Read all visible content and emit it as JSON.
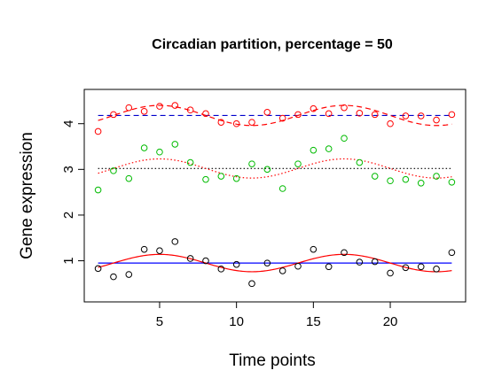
{
  "chart_data": {
    "type": "scatter",
    "title": "Circadian partition, percentage =  50",
    "xlabel": "Time points",
    "ylabel": "Gene expression",
    "xlim": [
      0.1,
      24.9
    ],
    "ylim": [
      0.1,
      4.75
    ],
    "x_ticks": [
      5,
      10,
      15,
      20
    ],
    "y_ticks": [
      1,
      2,
      3,
      4
    ],
    "grid": false,
    "legend": "none",
    "x": [
      1,
      2,
      3,
      4,
      5,
      6,
      7,
      8,
      9,
      10,
      11,
      12,
      13,
      14,
      15,
      16,
      17,
      18,
      19,
      20,
      21,
      22,
      23,
      24
    ],
    "series": [
      {
        "color": "#ff0000",
        "values": [
          3.83,
          4.2,
          4.35,
          4.27,
          4.38,
          4.4,
          4.3,
          4.22,
          4.03,
          4.0,
          4.03,
          4.25,
          4.12,
          4.2,
          4.33,
          4.22,
          4.35,
          4.23,
          4.2,
          4.0,
          4.17,
          4.17,
          4.08,
          4.2
        ],
        "mean": 4.18,
        "mean_style": "dashed",
        "mean_color": "#0000cc",
        "fit": {
          "mean": 4.18,
          "amplitude": 0.22,
          "period": 12,
          "peak": 5,
          "style": "dashed",
          "color": "#ff0000"
        }
      },
      {
        "color": "#00bb00",
        "values": [
          2.55,
          2.97,
          2.8,
          3.47,
          3.38,
          3.55,
          3.15,
          2.78,
          2.85,
          2.8,
          3.12,
          3.0,
          2.58,
          3.12,
          3.42,
          3.45,
          3.68,
          3.15,
          2.85,
          2.75,
          2.78,
          2.7,
          2.85,
          2.72
        ],
        "mean": 3.02,
        "mean_style": "dotted",
        "mean_color": "#000000",
        "fit": {
          "mean": 3.02,
          "amplitude": 0.21,
          "period": 12,
          "peak": 5,
          "style": "dotted",
          "color": "#ff0000"
        }
      },
      {
        "color": "#000000",
        "values": [
          0.83,
          0.65,
          0.7,
          1.25,
          1.22,
          1.42,
          1.05,
          1.0,
          0.82,
          0.92,
          0.5,
          0.95,
          0.78,
          0.88,
          1.25,
          0.87,
          1.18,
          0.97,
          0.98,
          0.73,
          0.85,
          0.87,
          0.82,
          1.18
        ],
        "mean": 0.95,
        "mean_style": "solid",
        "mean_color": "#0000ff",
        "fit": {
          "mean": 0.95,
          "amplitude": 0.19,
          "period": 12,
          "peak": 5,
          "style": "solid",
          "color": "#ff0000"
        }
      }
    ]
  }
}
